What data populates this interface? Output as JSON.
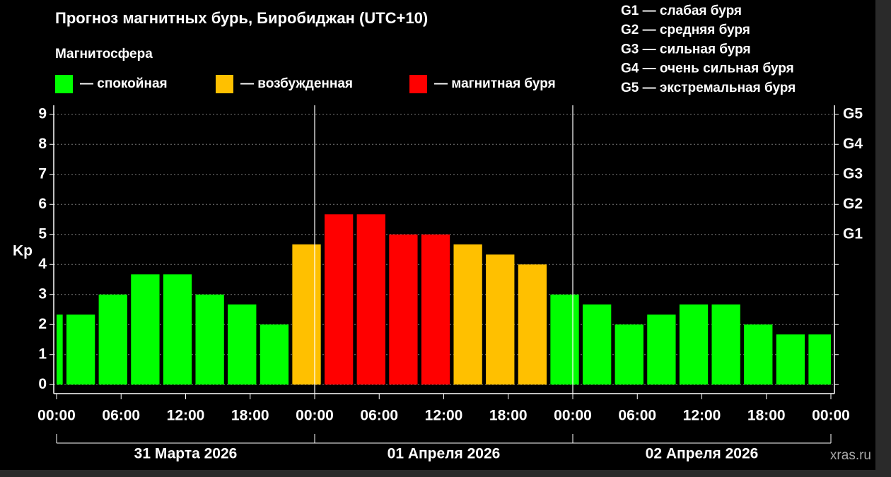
{
  "chart_data": {
    "type": "bar",
    "title": "Прогноз магнитных бурь, Биробиджан (UTC+10)",
    "legend_title": "Магнитосфера",
    "legend": [
      {
        "name": "— спокойная",
        "color": "#00ff00"
      },
      {
        "name": "— возбужденная",
        "color": "#ffc000"
      },
      {
        "name": "— магнитная буря",
        "color": "#ff0000"
      }
    ],
    "storm_levels": [
      "G1 — слабая буря",
      "G2 — средняя буря",
      "G3 — сильная буря",
      "G4 — очень сильная буря",
      "G5 — экстремальная буря"
    ],
    "y_label": "Kp",
    "values": [
      2.33,
      2.33,
      3,
      3.67,
      3.67,
      3,
      2.67,
      2,
      4.67,
      5.67,
      5.67,
      5,
      5,
      4.67,
      4.33,
      4,
      3,
      2.67,
      2,
      2.33,
      2.67,
      2.67,
      2,
      1.67,
      1.67
    ],
    "bar_colors": [
      "#00ff00",
      "#00ff00",
      "#00ff00",
      "#00ff00",
      "#00ff00",
      "#00ff00",
      "#00ff00",
      "#00ff00",
      "#ffc000",
      "#ff0000",
      "#ff0000",
      "#ff0000",
      "#ff0000",
      "#ffc000",
      "#ffc000",
      "#ffc000",
      "#00ff00",
      "#00ff00",
      "#00ff00",
      "#00ff00",
      "#00ff00",
      "#00ff00",
      "#00ff00",
      "#00ff00",
      "#00ff00"
    ],
    "xlim": [
      0,
      72
    ],
    "xticks": [
      {
        "value": 0,
        "label": "00:00"
      },
      {
        "value": 6,
        "label": "06:00"
      },
      {
        "value": 12,
        "label": "12:00"
      },
      {
        "value": 18,
        "label": "18:00"
      },
      {
        "value": 24,
        "label": "00:00"
      },
      {
        "value": 30,
        "label": "06:00"
      },
      {
        "value": 36,
        "label": "12:00"
      },
      {
        "value": 42,
        "label": "18:00"
      },
      {
        "value": 48,
        "label": "00:00"
      },
      {
        "value": 54,
        "label": "06:00"
      },
      {
        "value": 60,
        "label": "12:00"
      },
      {
        "value": 66,
        "label": "18:00"
      },
      {
        "value": 72,
        "label": "00:00"
      }
    ],
    "days": [
      "31 Марта 2026",
      "01 Апреля 2026",
      "02 Апреля 2026"
    ],
    "ylim": [
      -0.3,
      9.3
    ],
    "yticks": [
      0,
      1,
      2,
      3,
      4,
      5,
      6,
      7,
      8,
      9
    ],
    "y2ticks": [
      {
        "value": 5,
        "label": "G1"
      },
      {
        "value": 6,
        "label": "G2"
      },
      {
        "value": 7,
        "label": "G3"
      },
      {
        "value": 8,
        "label": "G4"
      },
      {
        "value": 9,
        "label": "G5"
      }
    ],
    "grid": true,
    "watermark": "xras.ru"
  }
}
